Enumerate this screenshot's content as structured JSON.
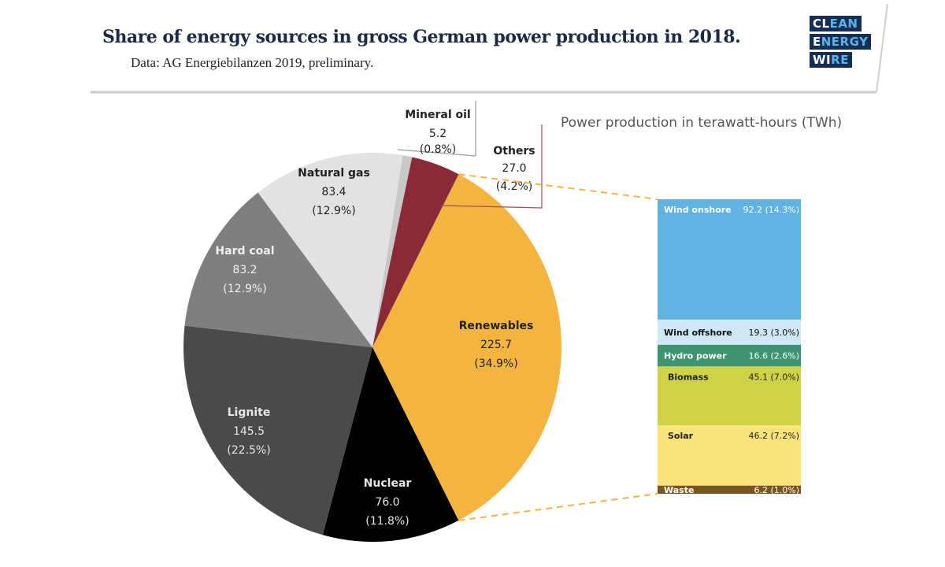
{
  "header": {
    "title": "Share of energy sources in gross German power production in 2018.",
    "subtitle": "Data: AG Energiebilanzen 2019, preliminary.",
    "logo": [
      {
        "white": "CL",
        "blue": "EAN"
      },
      {
        "white": "E",
        "blue": "NERGY"
      },
      {
        "white": "WI",
        "blue": "RE"
      }
    ]
  },
  "chart_data": [
    {
      "type": "pie",
      "title": "Share of energy sources in gross German power production in 2018.",
      "unit": "TWh",
      "slices": [
        {
          "name": "Mineral oil",
          "value": 5.2,
          "value_label": "5.2",
          "pct_label": "(0.8%)",
          "color": "#c8c8c8",
          "text_color": "#222222"
        },
        {
          "name": "Others",
          "value": 27.0,
          "value_label": "27.0",
          "pct_label": "(4.2%)",
          "color": "#8b2a37",
          "text_color": "#222222"
        },
        {
          "name": "Renewables",
          "value": 225.7,
          "value_label": "225.7",
          "pct_label": "(34.9%)",
          "color": "#f3b53f",
          "text_color": "#222222"
        },
        {
          "name": "Nuclear",
          "value": 76.0,
          "value_label": "76.0",
          "pct_label": "(11.8%)",
          "color": "#000000",
          "text_color": "#e6e6e6"
        },
        {
          "name": "Lignite",
          "value": 145.5,
          "value_label": "145.5",
          "pct_label": "(22.5%)",
          "color": "#4a4a4a",
          "text_color": "#e6e6e6"
        },
        {
          "name": "Hard coal",
          "value": 83.2,
          "value_label": "83.2",
          "pct_label": "(12.9%)",
          "color": "#7f7f7f",
          "text_color": "#f0f0f0"
        },
        {
          "name": "Natural gas",
          "value": 83.4,
          "value_label": "83.4",
          "pct_label": "(12.9%)",
          "color": "#e2e2e2",
          "text_color": "#222222"
        }
      ]
    },
    {
      "type": "bar",
      "subtype": "stacked",
      "title": "Power production in terawatt-hours (TWh)",
      "categories": [
        "Renewables"
      ],
      "series": [
        {
          "name": "Wind onshore",
          "value": 92.2,
          "value_label": "92.2 (14.3%)",
          "color": "#5fb2e2",
          "text_color": "#ffffff"
        },
        {
          "name": "Wind offshore",
          "value": 19.3,
          "value_label": "19.3 (3.0%)",
          "color": "#cfe8f5",
          "text_color": "#111111"
        },
        {
          "name": "Hydro power",
          "value": 16.6,
          "value_label": "16.6 (2.6%)",
          "color": "#3e9470",
          "text_color": "#ffffff"
        },
        {
          "name": "Biomass",
          "value": 45.1,
          "value_label": "45.1 (7.0%)",
          "color": "#cdd246",
          "text_color": "#222222"
        },
        {
          "name": "Solar",
          "value": 46.2,
          "value_label": "46.2 (7.2%)",
          "color": "#f9e37a",
          "text_color": "#222222"
        },
        {
          "name": "Waste",
          "value": 6.2,
          "value_label": "6.2 (1.0%)",
          "color": "#7a5520",
          "text_color": "#ffffff"
        }
      ]
    }
  ]
}
